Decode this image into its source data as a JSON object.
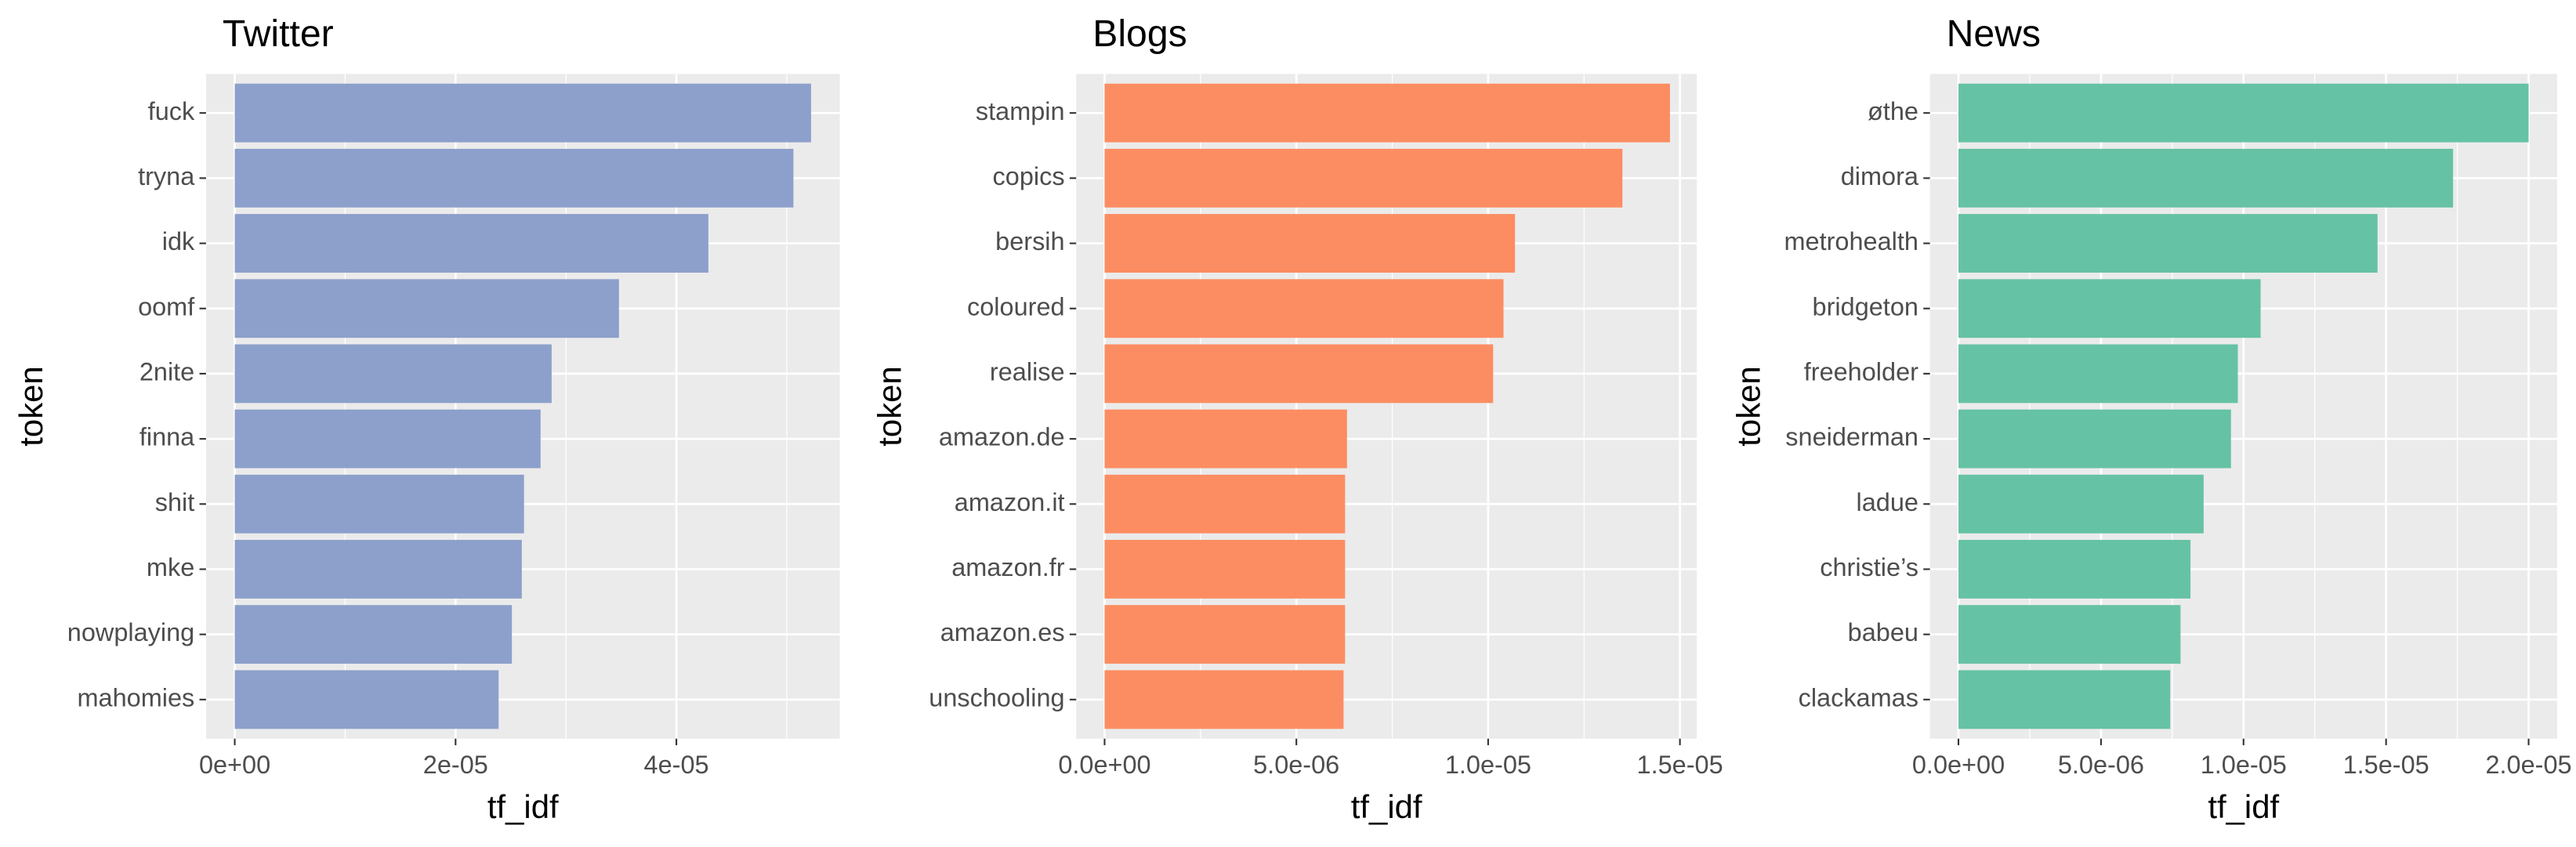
{
  "chart_data": [
    {
      "type": "bar",
      "orientation": "horizontal",
      "title": "Twitter",
      "xlabel": "tf_idf",
      "ylabel": "token",
      "color": "#8DA0CB",
      "grid": true,
      "categories": [
        "fuck",
        "tryna",
        "idk",
        "oomf",
        "2nite",
        "finna",
        "shit",
        "mke",
        "nowplaying",
        "mahomies"
      ],
      "values": [
        5.22e-05,
        5.06e-05,
        4.29e-05,
        3.48e-05,
        2.87e-05,
        2.77e-05,
        2.62e-05,
        2.6e-05,
        2.51e-05,
        2.39e-05
      ],
      "xlim": [
        -2.6e-06,
        5.48e-05
      ],
      "xticks": [
        {
          "value": 0,
          "label": "0e+00"
        },
        {
          "value": 2e-05,
          "label": "2e-05"
        },
        {
          "value": 4e-05,
          "label": "4e-05"
        }
      ]
    },
    {
      "type": "bar",
      "orientation": "horizontal",
      "title": "Blogs",
      "xlabel": "tf_idf",
      "ylabel": "token",
      "color": "#FC8D62",
      "grid": true,
      "categories": [
        "stampin",
        "copics",
        "bersih",
        "coloured",
        "realise",
        "amazon.de",
        "amazon.it",
        "amazon.fr",
        "amazon.es",
        "unschooling"
      ],
      "values": [
        1.474e-05,
        1.35e-05,
        1.07e-05,
        1.04e-05,
        1.013e-05,
        6.32e-06,
        6.27e-06,
        6.27e-06,
        6.27e-06,
        6.23e-06
      ],
      "xlim": [
        -7.4e-07,
        1.544e-05
      ],
      "xticks": [
        {
          "value": 0,
          "label": "0.0e+00"
        },
        {
          "value": 5e-06,
          "label": "5.0e-06"
        },
        {
          "value": 1e-05,
          "label": "1.0e-05"
        },
        {
          "value": 1.5e-05,
          "label": "1.5e-05"
        }
      ]
    },
    {
      "type": "bar",
      "orientation": "horizontal",
      "title": "News",
      "xlabel": "tf_idf",
      "ylabel": "token",
      "color": "#66C2A5",
      "grid": true,
      "categories": [
        "øthe",
        "dimora",
        "metrohealth",
        "bridgeton",
        "freeholder",
        "sneiderman",
        "ladue",
        "christie’s",
        "babeu",
        "clackamas"
      ],
      "values": [
        2e-05,
        1.735e-05,
        1.47e-05,
        1.06e-05,
        9.8e-06,
        9.56e-06,
        8.6e-06,
        8.14e-06,
        7.79e-06,
        7.43e-06
      ],
      "xlim": [
        -1e-06,
        2.1e-05
      ],
      "xticks": [
        {
          "value": 0,
          "label": "0.0e+00"
        },
        {
          "value": 5e-06,
          "label": "5.0e-06"
        },
        {
          "value": 1e-05,
          "label": "1.0e-05"
        },
        {
          "value": 1.5e-05,
          "label": "1.5e-05"
        },
        {
          "value": 2e-05,
          "label": "2.0e-05"
        }
      ]
    }
  ]
}
